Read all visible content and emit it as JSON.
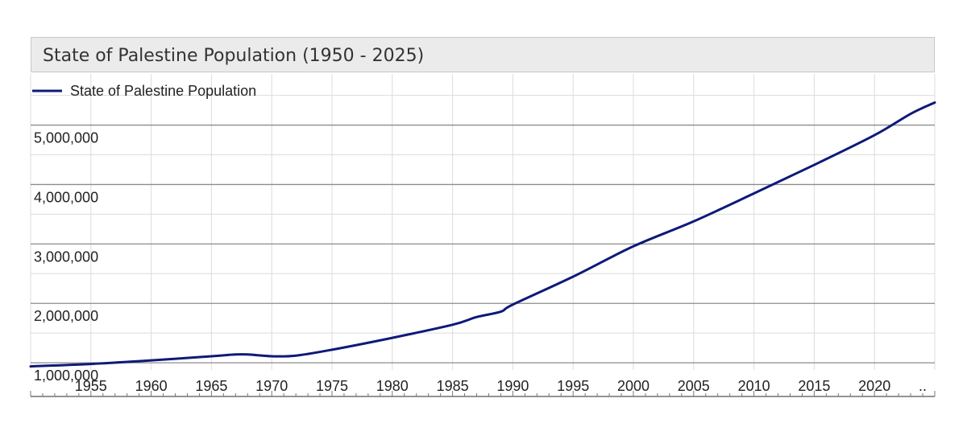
{
  "chart_data": {
    "type": "line",
    "title": "State of Palestine Population (1950 - 2025)",
    "series": [
      {
        "name": "State of Palestine Population",
        "color": "#0d1a78",
        "x": [
          1950,
          1955,
          1960,
          1965,
          1967,
          1968,
          1970,
          1972,
          1975,
          1980,
          1985,
          1987,
          1989,
          1990,
          1995,
          2000,
          2005,
          2010,
          2015,
          2020,
          2023,
          2025
        ],
        "y": [
          940000,
          980000,
          1040000,
          1110000,
          1140000,
          1140000,
          1110000,
          1120000,
          1220000,
          1420000,
          1640000,
          1770000,
          1860000,
          1980000,
          2450000,
          2960000,
          3380000,
          3850000,
          4330000,
          4830000,
          5190000,
          5380000
        ]
      }
    ],
    "xlim": [
      1950,
      2025
    ],
    "ylim": [
      880000,
      5860000
    ],
    "x_ticks": [
      "1955",
      "1960",
      "1965",
      "1970",
      "1975",
      "1980",
      "1985",
      "1990",
      "1995",
      "2000",
      "2005",
      "2010",
      "2015",
      "2020",
      ".."
    ],
    "y_ticks": [
      "1,000,000",
      "2,000,000",
      "3,000,000",
      "4,000,000",
      "5,000,000"
    ],
    "grid": true,
    "legend": "top-left"
  }
}
